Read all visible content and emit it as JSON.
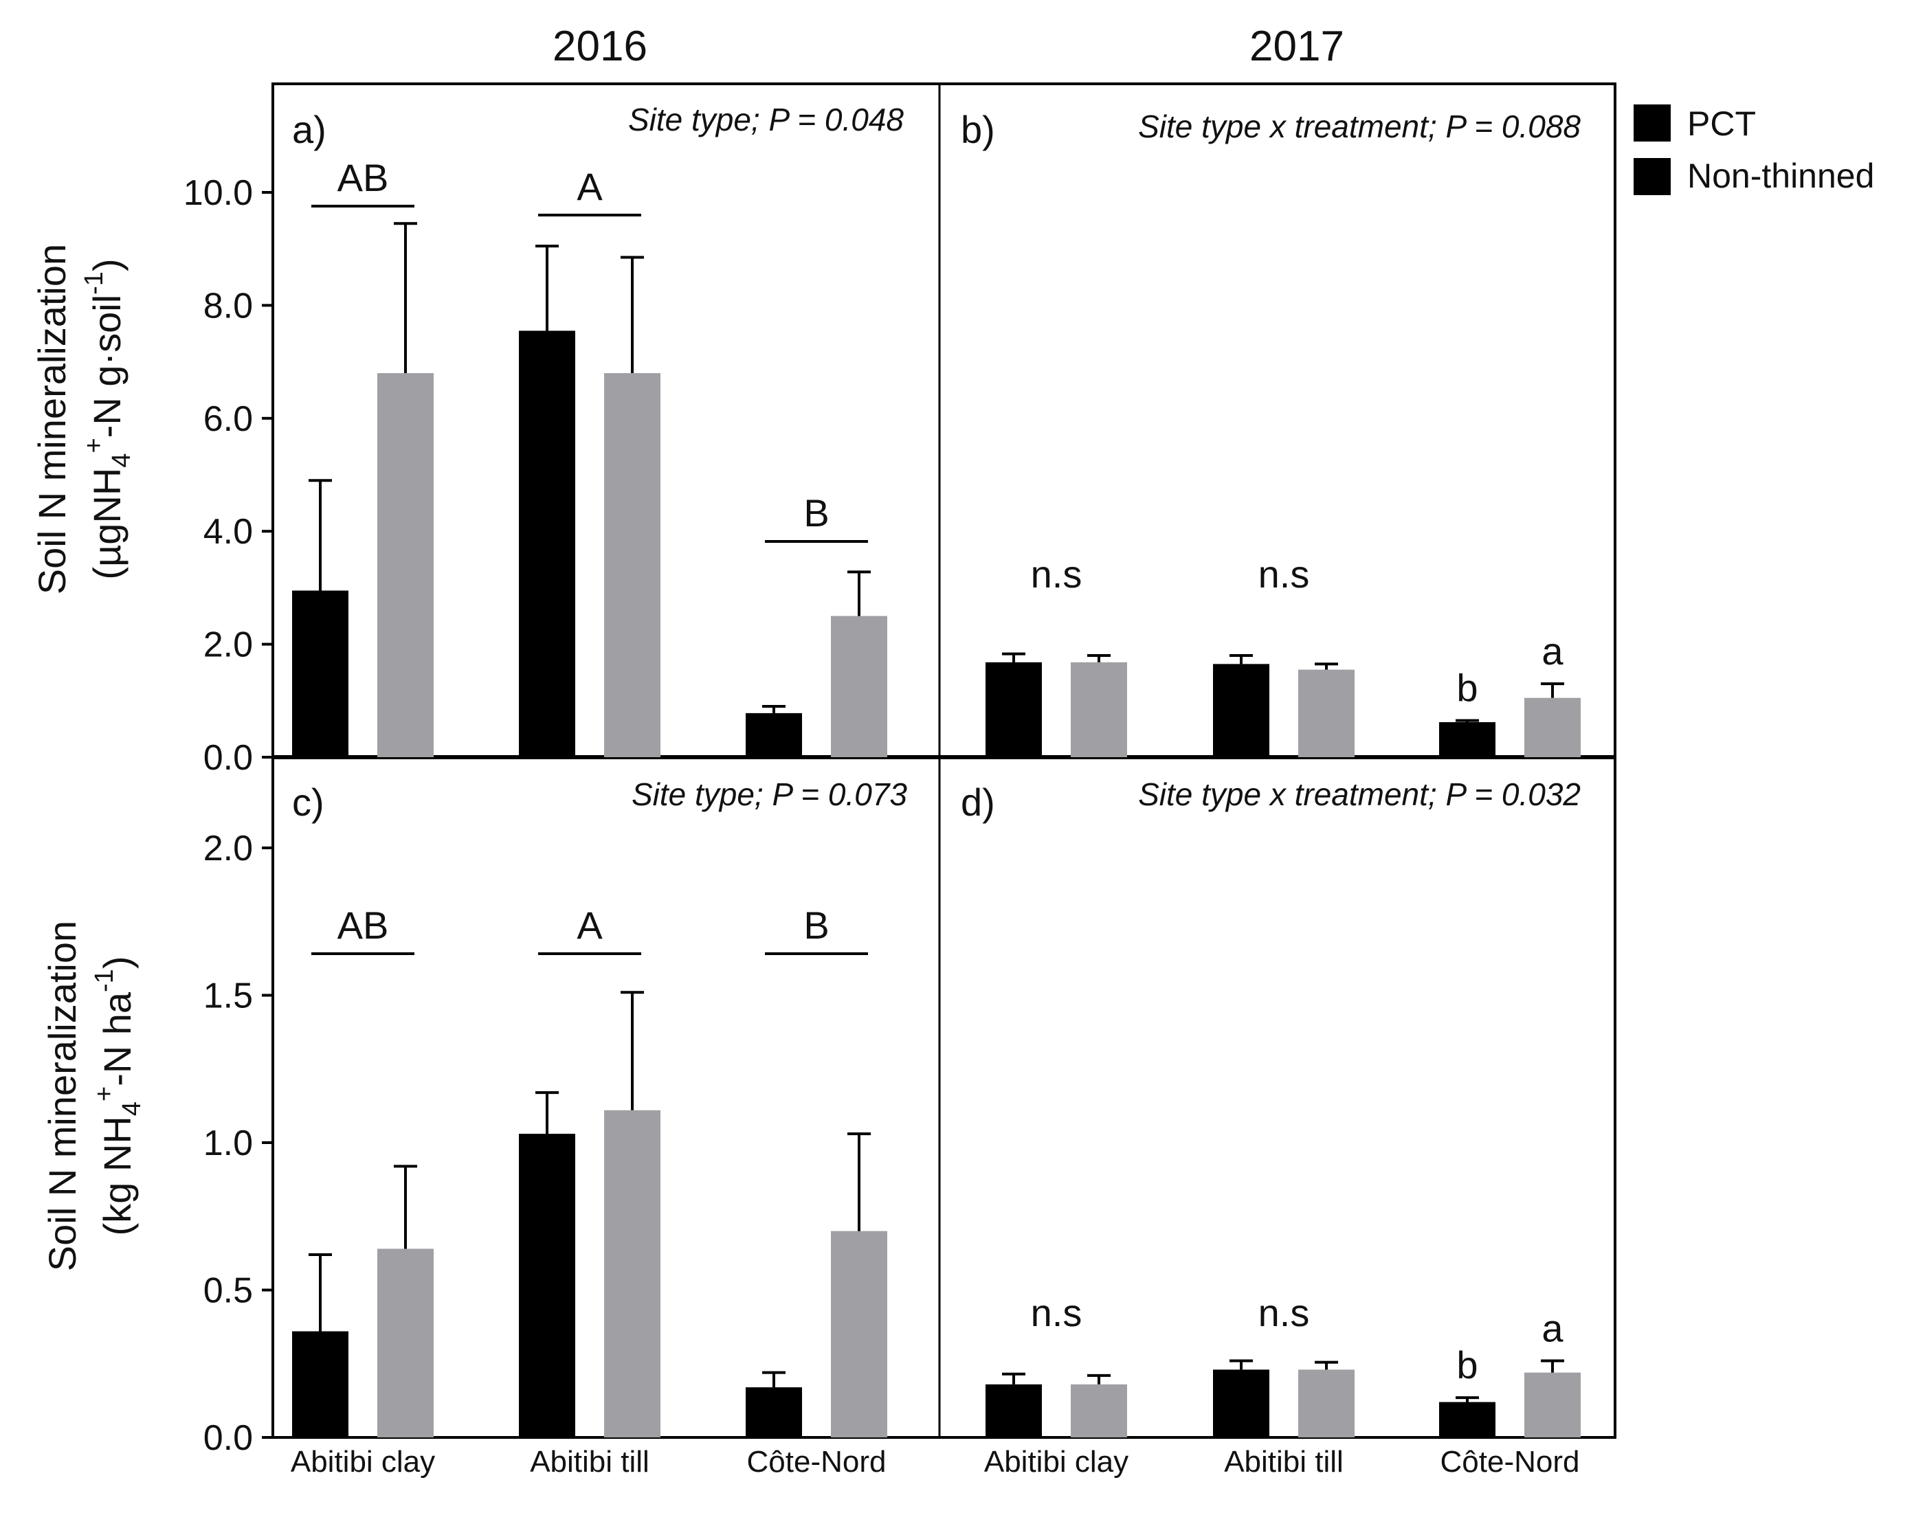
{
  "years": [
    "2016",
    "2017"
  ],
  "legend": [
    {
      "label": "PCT",
      "color": "#000000"
    },
    {
      "label": "Non-thinned",
      "color": "#a0a0a4"
    }
  ],
  "chart_data": [
    {
      "id": "a",
      "type": "bar",
      "panel_tag": "a)",
      "year": "2016",
      "stat": "Site type; P = 0.048",
      "categories": [
        "Abitibi clay",
        "Abitibi till",
        "Côte-Nord"
      ],
      "series": [
        {
          "name": "PCT",
          "values": [
            2.95,
            7.55,
            0.78
          ],
          "errors": [
            1.95,
            1.5,
            0.12
          ]
        },
        {
          "name": "Non-thinned",
          "values": [
            6.8,
            6.8,
            2.5
          ],
          "errors": [
            2.65,
            2.05,
            0.78
          ]
        }
      ],
      "group_labels": [
        "AB",
        "A",
        "B"
      ],
      "ylabel": "Soil N mineralization",
      "ylabel_units": {
        "pre": "(µgNH",
        "sub": "4",
        "sup": "+",
        "mid": "-N g·soil",
        "sup2": "-1",
        "post": ")"
      },
      "ylim": [
        0,
        11.5
      ],
      "yticks": [
        "0.0",
        "2.0",
        "4.0",
        "6.0",
        "8.0",
        "10.0"
      ],
      "ytick_values": [
        0,
        2,
        4,
        6,
        8,
        10
      ]
    },
    {
      "id": "b",
      "type": "bar",
      "panel_tag": "b)",
      "year": "2017",
      "stat": "Site type x treatment; P = 0.088",
      "categories": [
        "Abitibi clay",
        "Abitibi till",
        "Côte-Nord"
      ],
      "series": [
        {
          "name": "PCT",
          "values": [
            1.68,
            1.65,
            0.62
          ],
          "errors": [
            0.15,
            0.15,
            0.03
          ]
        },
        {
          "name": "Non-thinned",
          "values": [
            1.68,
            1.55,
            1.05
          ],
          "errors": [
            0.12,
            0.1,
            0.25
          ]
        }
      ],
      "group_labels": [
        "n.s",
        "n.s",
        ""
      ],
      "bar_labels": [
        [
          "",
          ""
        ],
        [
          "",
          ""
        ],
        [
          "b",
          "a"
        ]
      ],
      "ylim": [
        0,
        11.5
      ]
    },
    {
      "id": "c",
      "type": "bar",
      "panel_tag": "c)",
      "year": "2016",
      "stat": "Site type; P = 0.073",
      "categories": [
        "Abitibi clay",
        "Abitibi till",
        "Côte-Nord"
      ],
      "series": [
        {
          "name": "PCT",
          "values": [
            0.36,
            1.03,
            0.17
          ],
          "errors": [
            0.26,
            0.14,
            0.05
          ]
        },
        {
          "name": "Non-thinned",
          "values": [
            0.64,
            1.11,
            0.7
          ],
          "errors": [
            0.28,
            0.4,
            0.33
          ]
        }
      ],
      "group_labels": [
        "AB",
        "A",
        "B"
      ],
      "ylabel": "Soil N mineralization",
      "ylabel_units": {
        "pre": "(kg NH",
        "sub": "4",
        "sup": "+",
        "mid": "-N ha",
        "sup2": "-1",
        "post": ")"
      },
      "ylim": [
        0,
        2.35
      ],
      "yticks": [
        "0.0",
        "0.5",
        "1.0",
        "1.5",
        "2.0"
      ],
      "ytick_values": [
        0,
        0.5,
        1.0,
        1.5,
        2.0
      ]
    },
    {
      "id": "d",
      "type": "bar",
      "panel_tag": "d)",
      "year": "2017",
      "stat": "Site type x treatment; P = 0.032",
      "categories": [
        "Abitibi clay",
        "Abitibi till",
        "Côte-Nord"
      ],
      "series": [
        {
          "name": "PCT",
          "values": [
            0.18,
            0.23,
            0.12
          ],
          "errors": [
            0.035,
            0.03,
            0.015
          ]
        },
        {
          "name": "Non-thinned",
          "values": [
            0.18,
            0.23,
            0.22
          ],
          "errors": [
            0.03,
            0.025,
            0.04
          ]
        }
      ],
      "group_labels": [
        "n.s",
        "n.s",
        ""
      ],
      "bar_labels": [
        [
          "",
          ""
        ],
        [
          "",
          ""
        ],
        [
          "b",
          "a"
        ]
      ],
      "ylim": [
        0,
        2.35
      ]
    }
  ]
}
